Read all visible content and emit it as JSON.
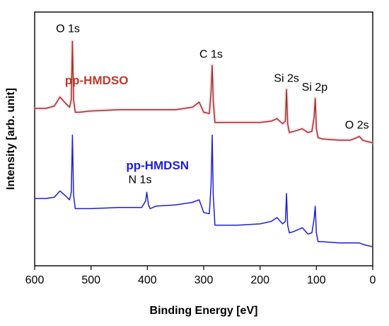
{
  "chart_data": {
    "type": "line",
    "xlabel": "Binding Energy [eV]",
    "ylabel": "Intensity [arb. unit]",
    "xlim": [
      600,
      0
    ],
    "ylim": [
      0,
      1
    ],
    "x_ticks": [
      600,
      500,
      400,
      300,
      200,
      100,
      0
    ],
    "x_tick_labels": [
      "600",
      "500",
      "400",
      "300",
      "200",
      "100",
      "0"
    ],
    "grid": false,
    "legend": "none",
    "series": [
      {
        "name": "pp-HMDSO",
        "color": "#a0341f",
        "glow_color": "#f2a6d8",
        "label_color": "#c0392b",
        "x": [
          600,
          580,
          565,
          555,
          545,
          538,
          535,
          533,
          531,
          528,
          520,
          500,
          450,
          400,
          350,
          320,
          308,
          300,
          290,
          287,
          285,
          283,
          280,
          270,
          240,
          200,
          180,
          170,
          160,
          155,
          153,
          151,
          148,
          140,
          125,
          115,
          108,
          104,
          102,
          100,
          97,
          90,
          60,
          40,
          28,
          24,
          18,
          10,
          0
        ],
        "y": [
          0.62,
          0.62,
          0.63,
          0.665,
          0.64,
          0.625,
          0.655,
          0.885,
          0.655,
          0.605,
          0.605,
          0.61,
          0.615,
          0.615,
          0.615,
          0.625,
          0.645,
          0.605,
          0.6,
          0.685,
          0.79,
          0.65,
          0.565,
          0.565,
          0.565,
          0.565,
          0.57,
          0.58,
          0.56,
          0.57,
          0.695,
          0.56,
          0.525,
          0.53,
          0.54,
          0.525,
          0.53,
          0.585,
          0.66,
          0.54,
          0.505,
          0.5,
          0.495,
          0.495,
          0.505,
          0.51,
          0.495,
          0.49,
          0.485
        ],
        "label_x": 490,
        "label_y": 0.715
      },
      {
        "name": "pp-HMDSN",
        "color": "#1e1ed8",
        "glow_color": "#1e1ed8",
        "label_color": "#1e1ed8",
        "x": [
          600,
          580,
          565,
          555,
          545,
          538,
          535,
          533,
          531,
          528,
          520,
          500,
          450,
          410,
          403,
          401,
          398,
          395,
          385,
          350,
          320,
          308,
          300,
          290,
          287,
          285,
          283,
          280,
          270,
          240,
          200,
          180,
          170,
          160,
          155,
          153,
          151,
          148,
          140,
          125,
          115,
          108,
          104,
          102,
          100,
          97,
          90,
          60,
          40,
          28,
          24,
          18,
          10,
          0
        ],
        "y": [
          0.265,
          0.265,
          0.27,
          0.295,
          0.275,
          0.26,
          0.29,
          0.515,
          0.28,
          0.225,
          0.225,
          0.225,
          0.23,
          0.23,
          0.255,
          0.29,
          0.24,
          0.225,
          0.235,
          0.24,
          0.25,
          0.26,
          0.21,
          0.205,
          0.32,
          0.515,
          0.28,
          0.16,
          0.16,
          0.16,
          0.165,
          0.175,
          0.19,
          0.165,
          0.175,
          0.285,
          0.16,
          0.13,
          0.135,
          0.15,
          0.125,
          0.13,
          0.185,
          0.235,
          0.13,
          0.095,
          0.095,
          0.09,
          0.09,
          0.09,
          0.09,
          0.085,
          0.08,
          0.075
        ],
        "label_x": 382,
        "label_y": 0.38
      }
    ],
    "annotations": [
      {
        "text": "O 1s",
        "x": 541,
        "y": 0.92
      },
      {
        "text": "C 1s",
        "x": 287,
        "y": 0.82
      },
      {
        "text": "Si 2s",
        "x": 153,
        "y": 0.725
      },
      {
        "text": "Si 2p",
        "x": 103,
        "y": 0.69
      },
      {
        "text": "O 2s",
        "x": 28,
        "y": 0.54
      },
      {
        "text": "N 1s",
        "x": 413,
        "y": 0.325
      }
    ]
  }
}
